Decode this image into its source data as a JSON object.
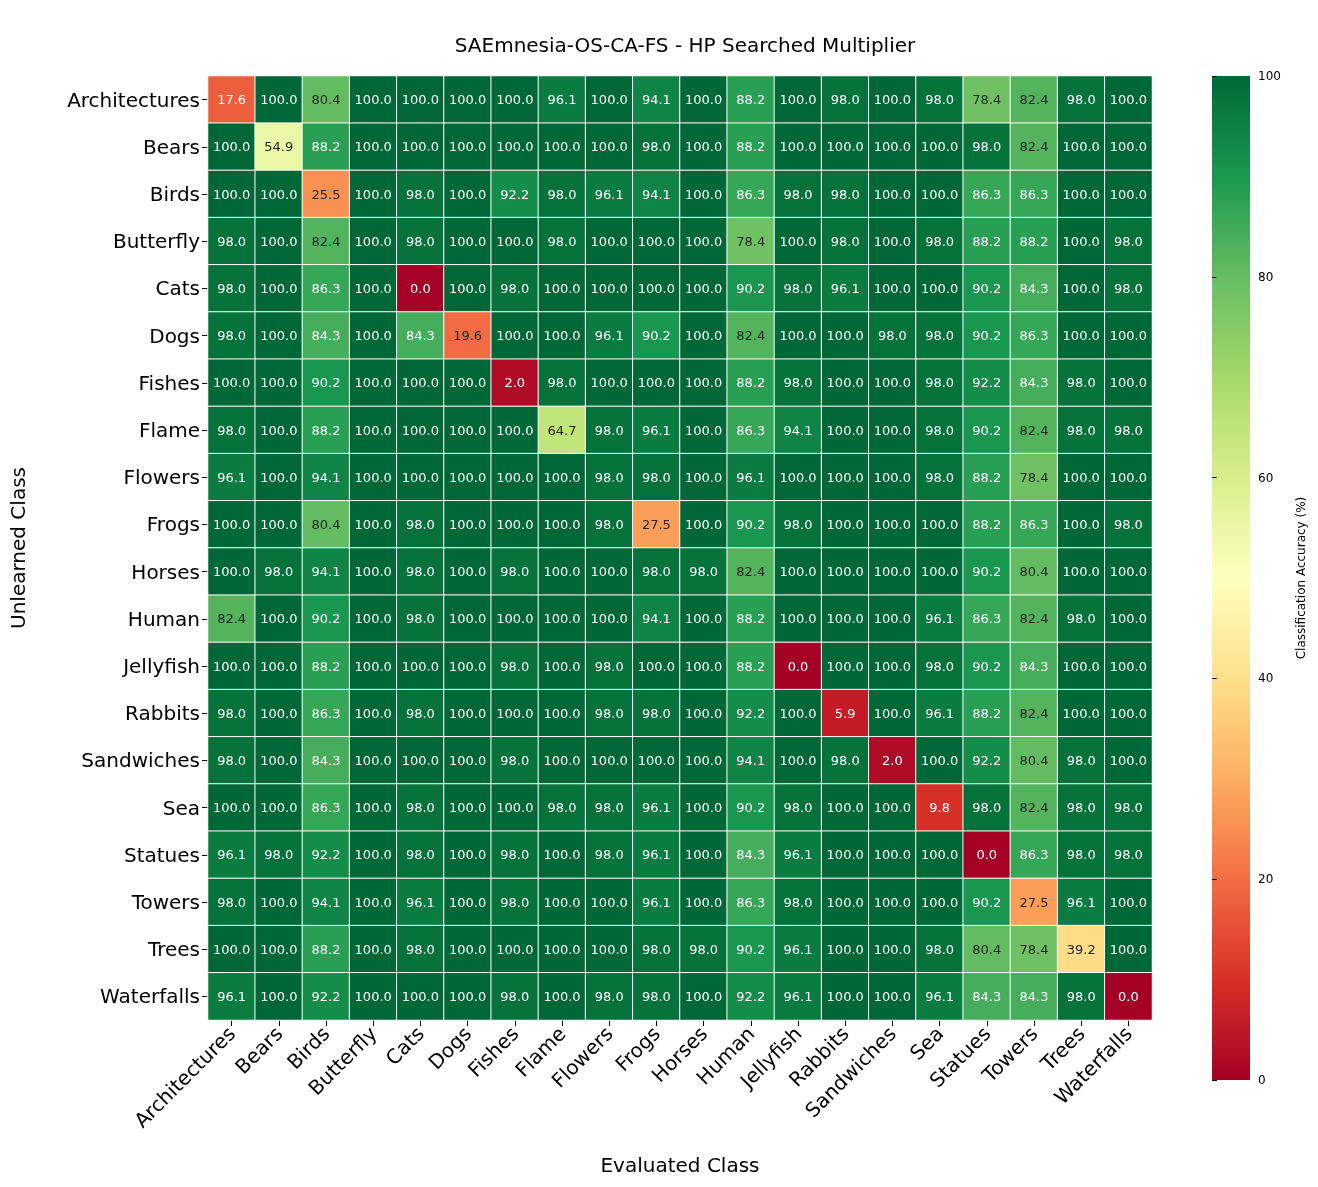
{
  "chart_data": {
    "type": "heatmap",
    "title": "SAEmnesia-OS-CA-FS - HP Searched Multiplier",
    "xlabel": "Evaluated Class",
    "ylabel": "Unlearned Class",
    "clabel": "Classification Accuracy (%)",
    "categories": [
      "Architectures",
      "Bears",
      "Birds",
      "Butterfly",
      "Cats",
      "Dogs",
      "Fishes",
      "Flame",
      "Flowers",
      "Frogs",
      "Horses",
      "Human",
      "Jellyfish",
      "Rabbits",
      "Sandwiches",
      "Sea",
      "Statues",
      "Towers",
      "Trees",
      "Waterfalls"
    ],
    "y_categories": [
      "Architectures",
      "Bears",
      "Birds",
      "Butterfly",
      "Cats",
      "Dogs",
      "Fishes",
      "Flame",
      "Flowers",
      "Frogs",
      "Horses",
      "Human",
      "Jellyfish",
      "Rabbits",
      "Sandwiches",
      "Sea",
      "Statues",
      "Towers",
      "Trees",
      "Waterfalls"
    ],
    "cells": [
      [
        17.6,
        100,
        80.4,
        100,
        100,
        100,
        100,
        96.1,
        100,
        94.1,
        100,
        88.2,
        100,
        98.0,
        100,
        98.0,
        78.4,
        82.4,
        98.0,
        100
      ],
      [
        100,
        54.9,
        88.2,
        100,
        100,
        100,
        100,
        100,
        100,
        98.0,
        100,
        88.2,
        100,
        100,
        100,
        100,
        98.0,
        82.4,
        100,
        100
      ],
      [
        100,
        100,
        25.5,
        100,
        98.0,
        100,
        92.2,
        98.0,
        96.1,
        94.1,
        100,
        86.3,
        98.0,
        98.0,
        100,
        100,
        86.3,
        86.3,
        100,
        100
      ],
      [
        98.0,
        100,
        82.4,
        100,
        98.0,
        100,
        100,
        98.0,
        100,
        100,
        100,
        78.4,
        100,
        98.0,
        100,
        98.0,
        88.2,
        88.2,
        100,
        98.0
      ],
      [
        98.0,
        100,
        86.3,
        100,
        0.0,
        100,
        98.0,
        100,
        100,
        100,
        100,
        90.2,
        98.0,
        96.1,
        100,
        100,
        90.2,
        84.3,
        100,
        98.0
      ],
      [
        98.0,
        100,
        84.3,
        100,
        84.3,
        19.6,
        100,
        100,
        96.1,
        90.2,
        100,
        82.4,
        100,
        100,
        98.0,
        98.0,
        90.2,
        86.3,
        100,
        100
      ],
      [
        100,
        100,
        90.2,
        100,
        100,
        100,
        2.0,
        98.0,
        100,
        100,
        100,
        88.2,
        98.0,
        100,
        100,
        98.0,
        92.2,
        84.3,
        98.0,
        100
      ],
      [
        98.0,
        100,
        88.2,
        100,
        100,
        100,
        100,
        64.7,
        98.0,
        96.1,
        100,
        86.3,
        94.1,
        100,
        100,
        98.0,
        90.2,
        82.4,
        98.0,
        98.0
      ],
      [
        96.1,
        100,
        94.1,
        100,
        100,
        100,
        100,
        100,
        98.0,
        98.0,
        100,
        96.1,
        100,
        100,
        100,
        98.0,
        88.2,
        78.4,
        100,
        100
      ],
      [
        100,
        100,
        80.4,
        100,
        98.0,
        100,
        100,
        100,
        98.0,
        27.5,
        100,
        90.2,
        98.0,
        100,
        100,
        100,
        88.2,
        86.3,
        100,
        98.0
      ],
      [
        100,
        98.0,
        94.1,
        100,
        98.0,
        100,
        98.0,
        100,
        100,
        98.0,
        98.0,
        82.4,
        100,
        100,
        100,
        100,
        90.2,
        80.4,
        100,
        100
      ],
      [
        82.4,
        100,
        90.2,
        100,
        98.0,
        100,
        100,
        100,
        100,
        94.1,
        100,
        88.2,
        100,
        100,
        100,
        96.1,
        86.3,
        82.4,
        98.0,
        100
      ],
      [
        100,
        100,
        88.2,
        100,
        100,
        100,
        98.0,
        100,
        98.0,
        100,
        100,
        88.2,
        0.0,
        100,
        100,
        98.0,
        90.2,
        84.3,
        100,
        100
      ],
      [
        98.0,
        100,
        86.3,
        100,
        98.0,
        100,
        100,
        100,
        98.0,
        98.0,
        100,
        92.2,
        100,
        5.9,
        100,
        96.1,
        88.2,
        82.4,
        100,
        100
      ],
      [
        98.0,
        100,
        84.3,
        100,
        100,
        100,
        98.0,
        100,
        100,
        100,
        100,
        94.1,
        100,
        98.0,
        2.0,
        100,
        92.2,
        80.4,
        98.0,
        100
      ],
      [
        100,
        100,
        86.3,
        100,
        98.0,
        100,
        100,
        98.0,
        98.0,
        96.1,
        100,
        90.2,
        98.0,
        100,
        100,
        9.8,
        98.0,
        82.4,
        98.0,
        98.0
      ],
      [
        96.1,
        98.0,
        92.2,
        100,
        98.0,
        100,
        98.0,
        100,
        98.0,
        96.1,
        100,
        84.3,
        96.1,
        100,
        100,
        100,
        0.0,
        86.3,
        98.0,
        98.0
      ],
      [
        98.0,
        100,
        94.1,
        100,
        96.1,
        100,
        98.0,
        100,
        100,
        96.1,
        100,
        86.3,
        98.0,
        100,
        100,
        100,
        90.2,
        27.5,
        96.1,
        100
      ],
      [
        100,
        100,
        88.2,
        100,
        98.0,
        100,
        100,
        100,
        100,
        98.0,
        98.0,
        90.2,
        96.1,
        100,
        100,
        98.0,
        80.4,
        78.4,
        39.2,
        100
      ],
      [
        96.1,
        100,
        92.2,
        100,
        100,
        100,
        98.0,
        100,
        98.0,
        98.0,
        100,
        92.2,
        96.1,
        100,
        100,
        96.1,
        84.3,
        84.3,
        98.0,
        0.0
      ]
    ],
    "cell_labels": [
      [
        "17.6",
        "100.0",
        "80.4",
        "100.0",
        "100.0",
        "100.0",
        "100.0",
        "96.1",
        "100.0",
        "94.1",
        "100.0",
        "88.2",
        "100.0",
        "98.0",
        "100.0",
        "98.0",
        "78.4",
        "82.4",
        "98.0",
        "100.0"
      ],
      [
        "100.0",
        "54.9",
        "88.2",
        "100.0",
        "100.0",
        "100.0",
        "100.0",
        "100.0",
        "100.0",
        "98.0",
        "100.0",
        "88.2",
        "100.0",
        "100.0",
        "100.0",
        "100.0",
        "98.0",
        "82.4",
        "100.0",
        "100.0"
      ],
      [
        "100.0",
        "100.0",
        "25.5",
        "100.0",
        "98.0",
        "100.0",
        "92.2",
        "98.0",
        "96.1",
        "94.1",
        "100.0",
        "86.3",
        "98.0",
        "98.0",
        "100.0",
        "100.0",
        "86.3",
        "86.3",
        "100.0",
        "100.0"
      ],
      [
        "98.0",
        "100.0",
        "82.4",
        "100.0",
        "98.0",
        "100.0",
        "100.0",
        "98.0",
        "100.0",
        "100.0",
        "100.0",
        "78.4",
        "100.0",
        "98.0",
        "100.0",
        "98.0",
        "88.2",
        "88.2",
        "100.0",
        "98.0"
      ],
      [
        "98.0",
        "100.0",
        "86.3",
        "100.0",
        "0.0",
        "100.0",
        "98.0",
        "100.0",
        "100.0",
        "100.0",
        "100.0",
        "90.2",
        "98.0",
        "96.1",
        "100.0",
        "100.0",
        "90.2",
        "84.3",
        "100.0",
        "98.0"
      ],
      [
        "98.0",
        "100.0",
        "84.3",
        "100.0",
        "84.3",
        "19.6",
        "100.0",
        "100.0",
        "96.1",
        "90.2",
        "100.0",
        "82.4",
        "100.0",
        "100.0",
        "98.0",
        "98.0",
        "90.2",
        "86.3",
        "100.0",
        "100.0"
      ],
      [
        "100.0",
        "100.0",
        "90.2",
        "100.0",
        "100.0",
        "100.0",
        "2.0",
        "98.0",
        "100.0",
        "100.0",
        "100.0",
        "88.2",
        "98.0",
        "100.0",
        "100.0",
        "98.0",
        "92.2",
        "84.3",
        "98.0",
        "100.0"
      ],
      [
        "98.0",
        "100.0",
        "88.2",
        "100.0",
        "100.0",
        "100.0",
        "100.0",
        "64.7",
        "98.0",
        "96.1",
        "100.0",
        "86.3",
        "94.1",
        "100.0",
        "100.0",
        "98.0",
        "90.2",
        "82.4",
        "98.0",
        "98.0"
      ],
      [
        "96.1",
        "100.0",
        "94.1",
        "100.0",
        "100.0",
        "100.0",
        "100.0",
        "100.0",
        "98.0",
        "98.0",
        "100.0",
        "96.1",
        "100.0",
        "100.0",
        "100.0",
        "98.0",
        "88.2",
        "78.4",
        "100.0",
        "100.0"
      ],
      [
        "100.0",
        "100.0",
        "80.4",
        "100.0",
        "98.0",
        "100.0",
        "100.0",
        "100.0",
        "98.0",
        "27.5",
        "100.0",
        "90.2",
        "98.0",
        "100.0",
        "100.0",
        "100.0",
        "88.2",
        "86.3",
        "100.0",
        "98.0"
      ],
      [
        "100.0",
        "98.0",
        "94.1",
        "100.0",
        "98.0",
        "100.0",
        "98.0",
        "100.0",
        "100.0",
        "98.0",
        "98.0",
        "82.4",
        "100.0",
        "100.0",
        "100.0",
        "100.0",
        "90.2",
        "80.4",
        "100.0",
        "100.0"
      ],
      [
        "82.4",
        "100.0",
        "90.2",
        "100.0",
        "98.0",
        "100.0",
        "100.0",
        "100.0",
        "100.0",
        "94.1",
        "100.0",
        "88.2",
        "100.0",
        "100.0",
        "100.0",
        "96.1",
        "86.3",
        "82.4",
        "98.0",
        "100.0"
      ],
      [
        "100.0",
        "100.0",
        "88.2",
        "100.0",
        "100.0",
        "100.0",
        "98.0",
        "100.0",
        "98.0",
        "100.0",
        "100.0",
        "88.2",
        "0.0",
        "100.0",
        "100.0",
        "98.0",
        "90.2",
        "84.3",
        "100.0",
        "100.0"
      ],
      [
        "98.0",
        "100.0",
        "86.3",
        "100.0",
        "98.0",
        "100.0",
        "100.0",
        "100.0",
        "98.0",
        "98.0",
        "100.0",
        "92.2",
        "100.0",
        "5.9",
        "100.0",
        "96.1",
        "88.2",
        "82.4",
        "100.0",
        "100.0"
      ],
      [
        "98.0",
        "100.0",
        "84.3",
        "100.0",
        "100.0",
        "100.0",
        "98.0",
        "100.0",
        "100.0",
        "100.0",
        "100.0",
        "94.1",
        "100.0",
        "98.0",
        "2.0",
        "100.0",
        "92.2",
        "80.4",
        "98.0",
        "100.0"
      ],
      [
        "100.0",
        "100.0",
        "86.3",
        "100.0",
        "98.0",
        "100.0",
        "100.0",
        "98.0",
        "98.0",
        "96.1",
        "100.0",
        "90.2",
        "98.0",
        "100.0",
        "100.0",
        "9.8",
        "98.0",
        "82.4",
        "98.0",
        "98.0"
      ],
      [
        "96.1",
        "98.0",
        "92.2",
        "100.0",
        "98.0",
        "100.0",
        "98.0",
        "100.0",
        "98.0",
        "96.1",
        "100.0",
        "84.3",
        "96.1",
        "100.0",
        "100.0",
        "100.0",
        "0.0",
        "86.3",
        "98.0",
        "98.0"
      ],
      [
        "98.0",
        "100.0",
        "94.1",
        "100.0",
        "96.1",
        "100.0",
        "98.0",
        "100.0",
        "100.0",
        "96.1",
        "100.0",
        "86.3",
        "98.0",
        "100.0",
        "100.0",
        "100.0",
        "90.2",
        "27.5",
        "96.1",
        "100.0"
      ],
      [
        "100.0",
        "100.0",
        "88.2",
        "100.0",
        "98.0",
        "100.0",
        "100.0",
        "100.0",
        "100.0",
        "98.0",
        "98.0",
        "90.2",
        "96.1",
        "100.0",
        "100.0",
        "98.0",
        "80.4",
        "78.4",
        "39.2",
        "100.0"
      ],
      [
        "96.1",
        "100.0",
        "92.2",
        "100.0",
        "100.0",
        "100.0",
        "98.0",
        "100.0",
        "98.0",
        "98.0",
        "100.0",
        "92.2",
        "96.1",
        "100.0",
        "100.0",
        "96.1",
        "84.3",
        "84.3",
        "98.0",
        "0.0"
      ]
    ],
    "clim": [
      0,
      100
    ],
    "cticks": [
      0,
      20,
      40,
      60,
      80,
      100
    ]
  }
}
